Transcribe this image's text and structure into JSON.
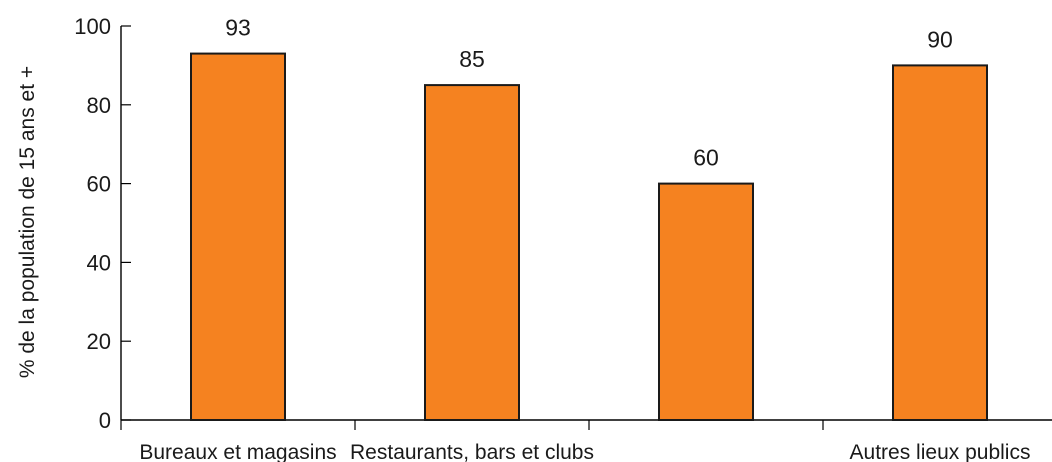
{
  "chart_data": {
    "type": "bar",
    "title": "",
    "xlabel": "",
    "ylabel": "% de la population de 15 ans et +",
    "categories": [
      "Bureaux et magasins",
      "Restaurants, bars et clubs",
      "",
      "Autres lieux publics"
    ],
    "values": [
      93,
      85,
      60,
      90
    ],
    "ylim": [
      0,
      100
    ],
    "yticks": [
      0,
      20,
      40,
      60,
      80,
      100
    ],
    "bar_color": "#f58220",
    "bar_edge_color": "#1a1a1a",
    "grid": false,
    "legend": "none"
  }
}
